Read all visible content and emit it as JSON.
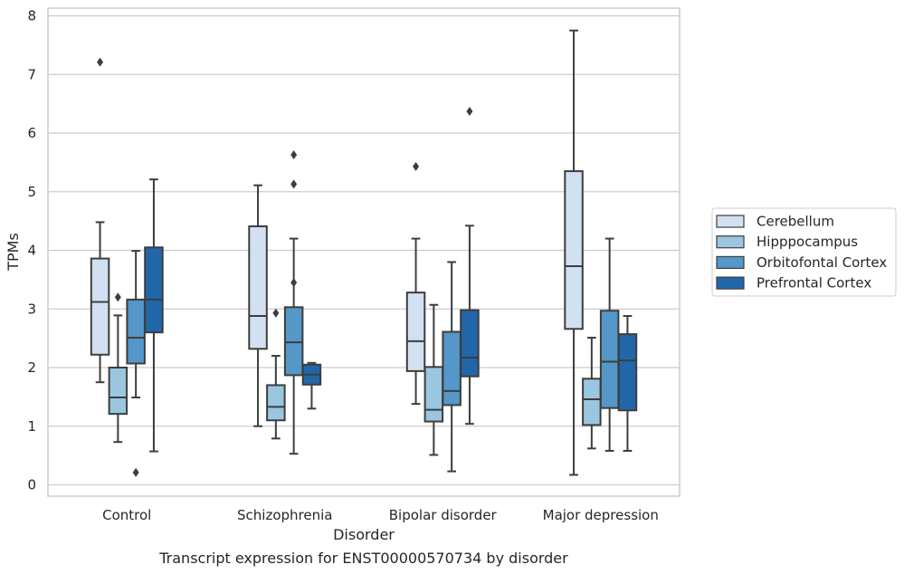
{
  "chart_data": {
    "type": "box",
    "caption": "Transcript expression for ENST00000570734 by disorder",
    "xlabel": "Disorder",
    "ylabel": "TPMs",
    "ylim": [
      -0.2,
      8.15
    ],
    "yticks": [
      0,
      1,
      2,
      3,
      4,
      5,
      6,
      7,
      8
    ],
    "grid": "horizontal",
    "legend_position": "right",
    "categories": [
      "Control",
      "Schizophrenia",
      "Bipolar disorder",
      "Major depression"
    ],
    "series": [
      {
        "name": "Cerebellum",
        "color": "#d2e1f1",
        "boxes": [
          {
            "whislo": 1.75,
            "q1": 2.22,
            "med": 3.12,
            "q3": 3.86,
            "whishi": 4.48,
            "fliers": [
              7.21
            ]
          },
          {
            "whislo": 1.0,
            "q1": 2.32,
            "med": 2.88,
            "q3": 4.41,
            "whishi": 5.11,
            "fliers": []
          },
          {
            "whislo": 1.38,
            "q1": 1.94,
            "med": 2.45,
            "q3": 3.28,
            "whishi": 4.2,
            "fliers": [
              5.43
            ]
          },
          {
            "whislo": 0.17,
            "q1": 2.66,
            "med": 3.73,
            "q3": 5.35,
            "whishi": 7.75,
            "fliers": []
          }
        ]
      },
      {
        "name": "Hipppocampus",
        "color": "#9ac6df",
        "boxes": [
          {
            "whislo": 0.73,
            "q1": 1.21,
            "med": 1.49,
            "q3": 2.0,
            "whishi": 2.89,
            "fliers": [
              3.2
            ]
          },
          {
            "whislo": 0.79,
            "q1": 1.1,
            "med": 1.33,
            "q3": 1.7,
            "whishi": 2.2,
            "fliers": [
              2.93
            ]
          },
          {
            "whislo": 0.51,
            "q1": 1.08,
            "med": 1.28,
            "q3": 2.01,
            "whishi": 3.07,
            "fliers": []
          },
          {
            "whislo": 0.62,
            "q1": 1.02,
            "med": 1.46,
            "q3": 1.81,
            "whishi": 2.51,
            "fliers": []
          }
        ]
      },
      {
        "name": "Orbitofontal Cortex",
        "color": "#5497c8",
        "boxes": [
          {
            "whislo": 1.49,
            "q1": 2.07,
            "med": 2.51,
            "q3": 3.16,
            "whishi": 3.99,
            "fliers": [
              0.21
            ]
          },
          {
            "whislo": 0.53,
            "q1": 1.87,
            "med": 2.43,
            "q3": 3.03,
            "whishi": 4.2,
            "fliers": [
              3.45,
              5.13,
              5.63
            ]
          },
          {
            "whislo": 0.23,
            "q1": 1.36,
            "med": 1.6,
            "q3": 2.61,
            "whishi": 3.8,
            "fliers": []
          },
          {
            "whislo": 0.58,
            "q1": 1.31,
            "med": 2.1,
            "q3": 2.97,
            "whishi": 4.2,
            "fliers": []
          }
        ]
      },
      {
        "name": "Prefrontal Cortex",
        "color": "#2266aa",
        "boxes": [
          {
            "whislo": 0.57,
            "q1": 2.6,
            "med": 3.16,
            "q3": 4.05,
            "whishi": 5.21,
            "fliers": []
          },
          {
            "whislo": 1.3,
            "q1": 1.71,
            "med": 1.88,
            "q3": 2.05,
            "whishi": 2.08,
            "fliers": []
          },
          {
            "whislo": 1.04,
            "q1": 1.85,
            "med": 2.17,
            "q3": 2.98,
            "whishi": 4.42,
            "fliers": [
              6.37
            ]
          },
          {
            "whislo": 0.58,
            "q1": 1.27,
            "med": 2.12,
            "q3": 2.57,
            "whishi": 2.88,
            "fliers": []
          }
        ]
      }
    ]
  }
}
